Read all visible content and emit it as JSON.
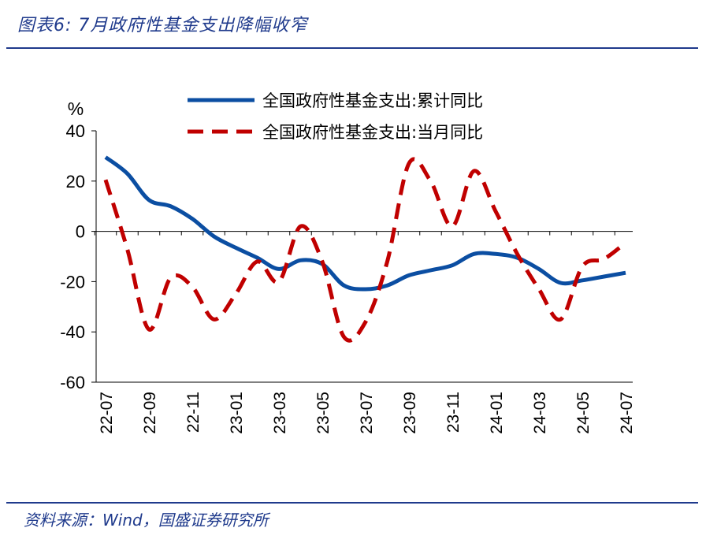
{
  "title": "图表6: 7月政府性基金支出降幅收窄",
  "source": "资料来源：Wind，国盛证券研究所",
  "chart_data": {
    "type": "line",
    "unit": "%",
    "ylim": [
      -60,
      40
    ],
    "yticks": [
      40,
      20,
      0,
      -20,
      -40,
      -60
    ],
    "x": [
      "22-07",
      "22-08",
      "22-09",
      "22-10",
      "22-11",
      "22-12",
      "23-01",
      "23-02",
      "23-03",
      "23-04",
      "23-05",
      "23-06",
      "23-07",
      "23-08",
      "23-09",
      "23-10",
      "23-11",
      "23-12",
      "24-01",
      "24-02",
      "24-03",
      "24-04",
      "24-05",
      "24-06",
      "24-07"
    ],
    "xtick_labels": [
      "22-07",
      "22-09",
      "22-11",
      "23-01",
      "23-03",
      "23-05",
      "23-07",
      "23-09",
      "23-11",
      "24-01",
      "24-03",
      "24-05",
      "24-07"
    ],
    "legend_position": "top",
    "series": [
      {
        "name": "全国政府性基金支出:累计同比",
        "style": "solid",
        "color": "#0b4ea2",
        "values": [
          29.5,
          23,
          12.5,
          10,
          5,
          -2,
          -6.5,
          -10.5,
          -15,
          -11.5,
          -13,
          -21.5,
          -23,
          -21.5,
          -17.5,
          -15.5,
          -13.5,
          -9,
          -9,
          -10.5,
          -15,
          -20.5,
          -19.5,
          -18,
          -16.5
        ]
      },
      {
        "name": "全国政府性基金支出:当月同比",
        "style": "dashed",
        "color": "#c00000",
        "values": [
          20.5,
          -7,
          -39,
          -18.5,
          -22,
          -35,
          -25,
          -12,
          -20,
          2,
          -12,
          -42,
          -36,
          -12,
          27,
          20,
          2,
          24,
          8,
          -9,
          -23,
          -35,
          -14,
          -11,
          -4.5
        ]
      }
    ]
  }
}
